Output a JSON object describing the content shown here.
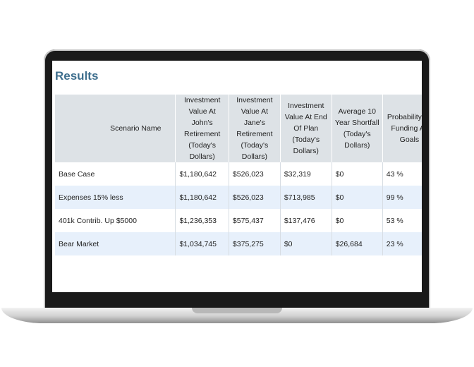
{
  "title": "Results",
  "headers": {
    "scenario_name": "Scenario Name",
    "value_john": "Investment Value At John's Retirement (Today's Dollars)",
    "value_jane": "Investment Value At Jane's Retirement (Today's Dollars)",
    "value_end": "Investment Value At End Of Plan (Today's Dollars)",
    "shortfall": "Average 10 Year Shortfall (Today's Dollars)",
    "probability": "Probability Of Funding All Goals"
  },
  "rows": [
    {
      "name": "Base Case",
      "john": "$1,180,642",
      "jane": "$526,023",
      "end": "$32,319",
      "shortfall": "$0",
      "probability": "43 %"
    },
    {
      "name": "Expenses 15% less",
      "john": "$1,180,642",
      "jane": "$526,023",
      "end": "$713,985",
      "shortfall": "$0",
      "probability": "99 %"
    },
    {
      "name": "401k Contrib. Up $5000",
      "john": "$1,236,353",
      "jane": "$575,437",
      "end": "$137,476",
      "shortfall": "$0",
      "probability": "53 %"
    },
    {
      "name": "Bear Market",
      "john": "$1,034,745",
      "jane": "$375,275",
      "end": "$0",
      "shortfall": "$26,684",
      "probability": "23 %"
    }
  ],
  "colors": {
    "title": "#3f6f8e",
    "header_bg": "#dde2e6",
    "alt_row_bg": "#e7f0fb"
  }
}
